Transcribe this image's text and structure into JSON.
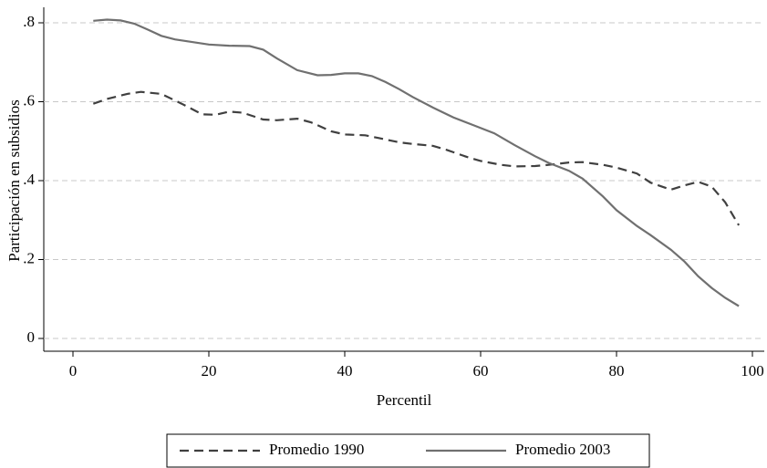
{
  "chart_data": {
    "type": "line",
    "xlabel": "Percentil",
    "ylabel": "Participación en subsidios",
    "xlim": [
      0,
      100
    ],
    "xticks": [
      0,
      20,
      40,
      60,
      80,
      100
    ],
    "ylim": [
      0,
      0.8
    ],
    "yticks": [
      0,
      {
        "value": 0.2,
        "label": ".2"
      },
      {
        "value": 0.4,
        "label": ".4"
      },
      {
        "value": 0.6,
        "label": ".6"
      },
      {
        "value": 0.8,
        "label": ".8"
      }
    ],
    "grid": true,
    "legend": "bottom",
    "series": [
      {
        "name": "Promedio 1990",
        "color": "#404040",
        "dash": true,
        "x": [
          3,
          5,
          8,
          10,
          13,
          16,
          19,
          21,
          23,
          25,
          28,
          30,
          33,
          35,
          38,
          40,
          43,
          45,
          48,
          50,
          53,
          55,
          58,
          60,
          63,
          65,
          68,
          70,
          73,
          75,
          78,
          80,
          83,
          85,
          88,
          90,
          92,
          94,
          96,
          98
        ],
        "values": [
          0.595,
          0.607,
          0.62,
          0.625,
          0.62,
          0.595,
          0.568,
          0.567,
          0.575,
          0.572,
          0.555,
          0.553,
          0.557,
          0.548,
          0.525,
          0.517,
          0.515,
          0.508,
          0.497,
          0.493,
          0.488,
          0.478,
          0.46,
          0.45,
          0.44,
          0.436,
          0.437,
          0.44,
          0.446,
          0.447,
          0.44,
          0.433,
          0.418,
          0.395,
          0.377,
          0.388,
          0.397,
          0.385,
          0.345,
          0.287
        ]
      },
      {
        "name": "Promedio 2003",
        "color": "#707070",
        "dash": false,
        "x": [
          3,
          5,
          7,
          9,
          11,
          13,
          15,
          18,
          20,
          23,
          26,
          28,
          30,
          33,
          36,
          38,
          40,
          42,
          44,
          46,
          48,
          50,
          53,
          56,
          59,
          62,
          65,
          68,
          70,
          73,
          75,
          78,
          80,
          83,
          85,
          88,
          90,
          92,
          94,
          96,
          98
        ],
        "values": [
          0.805,
          0.808,
          0.806,
          0.798,
          0.783,
          0.767,
          0.758,
          0.75,
          0.745,
          0.742,
          0.741,
          0.732,
          0.71,
          0.68,
          0.667,
          0.668,
          0.672,
          0.672,
          0.665,
          0.65,
          0.632,
          0.612,
          0.585,
          0.56,
          0.54,
          0.52,
          0.49,
          0.462,
          0.445,
          0.425,
          0.405,
          0.36,
          0.325,
          0.285,
          0.262,
          0.225,
          0.195,
          0.158,
          0.128,
          0.103,
          0.082
        ]
      }
    ]
  }
}
